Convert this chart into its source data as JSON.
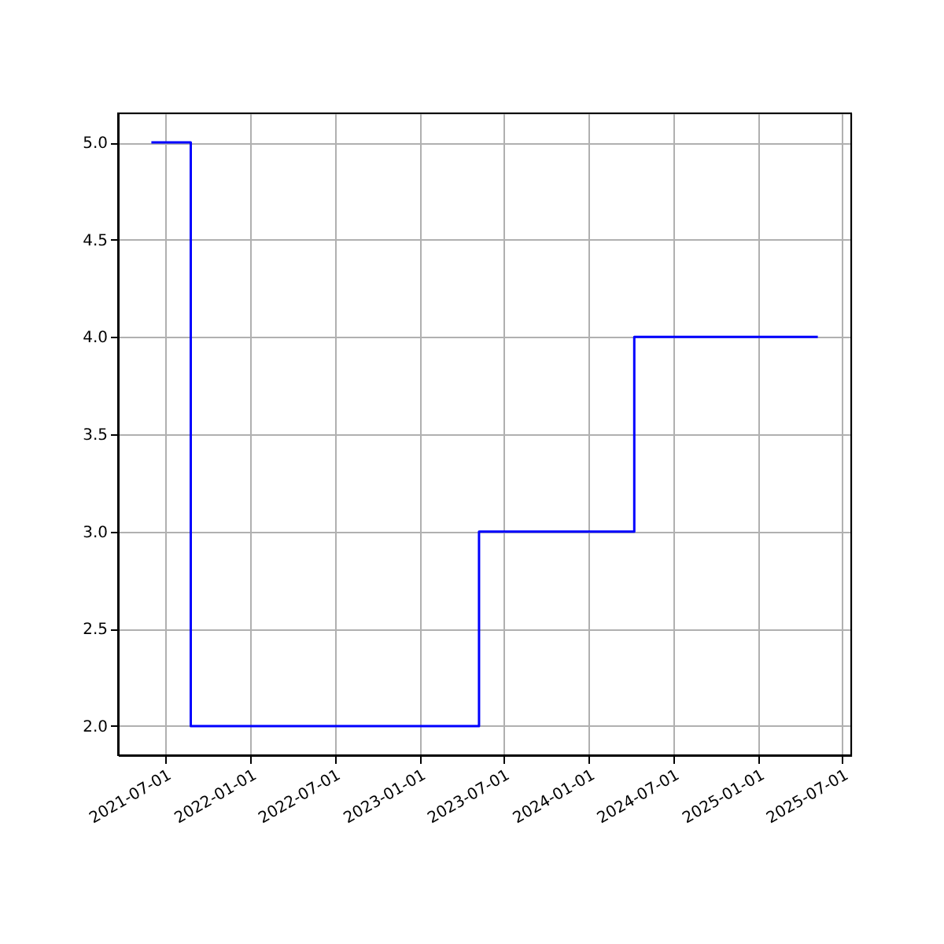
{
  "chart_data": {
    "type": "step",
    "x": [
      "2021-06-01",
      "2021-08-25",
      "2023-05-09",
      "2024-04-08",
      "2025-05-09"
    ],
    "series": [
      {
        "color": "#0000ff",
        "values": [
          5,
          2,
          3,
          4,
          4
        ]
      }
    ],
    "xlim": [
      "2021-03-21",
      "2025-07-20"
    ],
    "xticks": [
      "2021-07-01",
      "2022-01-01",
      "2022-07-01",
      "2023-01-01",
      "2023-07-01",
      "2024-01-01",
      "2024-07-01",
      "2025-01-01",
      "2025-07-01"
    ],
    "ylim": [
      1.85,
      5.15
    ],
    "yticks": [
      {
        "value": 2,
        "label": "2.0"
      },
      {
        "value": 2.5,
        "label": "2.5"
      },
      {
        "value": 3,
        "label": "3.0"
      },
      {
        "value": 3.5,
        "label": "3.5"
      },
      {
        "value": 4,
        "label": "4.0"
      },
      {
        "value": 4.5,
        "label": "4.5"
      },
      {
        "value": 5,
        "label": "5.0"
      }
    ],
    "grid": true,
    "marker": "none",
    "line_style": "solid"
  }
}
